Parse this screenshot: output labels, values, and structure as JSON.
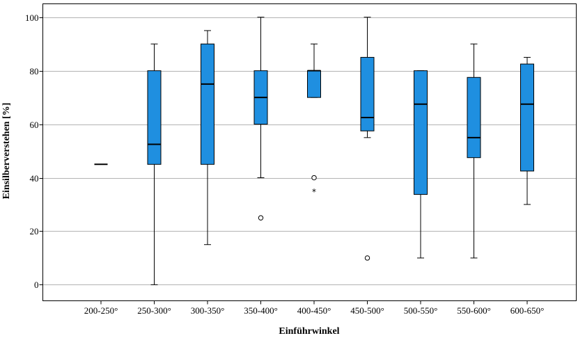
{
  "chart_data": {
    "type": "boxplot",
    "xlabel": "Einführwinkel",
    "ylabel": "Einsilberverstehen [%]",
    "ylim": [
      -6,
      105
    ],
    "yticks": [
      0,
      20,
      40,
      60,
      80,
      100
    ],
    "grid": "horizontal",
    "box_color": "#1f8fe0",
    "categories": [
      "200-250°",
      "250-300°",
      "300-350°",
      "350-400°",
      "400-450°",
      "450-500°",
      "500-550°",
      "550-600°",
      "600-650°"
    ],
    "boxes": [
      {
        "whisker_low": 45,
        "q1": 45,
        "median": 45,
        "q3": 45,
        "whisker_high": 45,
        "outliers": [],
        "extremes": []
      },
      {
        "whisker_low": 0,
        "q1": 45,
        "median": 52.5,
        "q3": 80,
        "whisker_high": 90,
        "outliers": [],
        "extremes": []
      },
      {
        "whisker_low": 15,
        "q1": 45,
        "median": 75,
        "q3": 90,
        "whisker_high": 95,
        "outliers": [],
        "extremes": []
      },
      {
        "whisker_low": 40,
        "q1": 60,
        "median": 70,
        "q3": 80,
        "whisker_high": 100,
        "outliers": [
          25
        ],
        "extremes": []
      },
      {
        "whisker_low": 70,
        "q1": 70,
        "median": 80,
        "q3": 80,
        "whisker_high": 90,
        "outliers": [
          40
        ],
        "extremes": [
          35
        ]
      },
      {
        "whisker_low": 55,
        "q1": 57.5,
        "median": 62.5,
        "q3": 85,
        "whisker_high": 100,
        "outliers": [
          10
        ],
        "extremes": []
      },
      {
        "whisker_low": 10,
        "q1": 33.75,
        "median": 67.5,
        "q3": 80,
        "whisker_high": 80,
        "outliers": [],
        "extremes": []
      },
      {
        "whisker_low": 10,
        "q1": 47.5,
        "median": 55,
        "q3": 77.5,
        "whisker_high": 90,
        "outliers": [],
        "extremes": []
      },
      {
        "whisker_low": 30,
        "q1": 42.5,
        "median": 67.5,
        "q3": 82.5,
        "whisker_high": 85,
        "outliers": [],
        "extremes": []
      }
    ]
  }
}
